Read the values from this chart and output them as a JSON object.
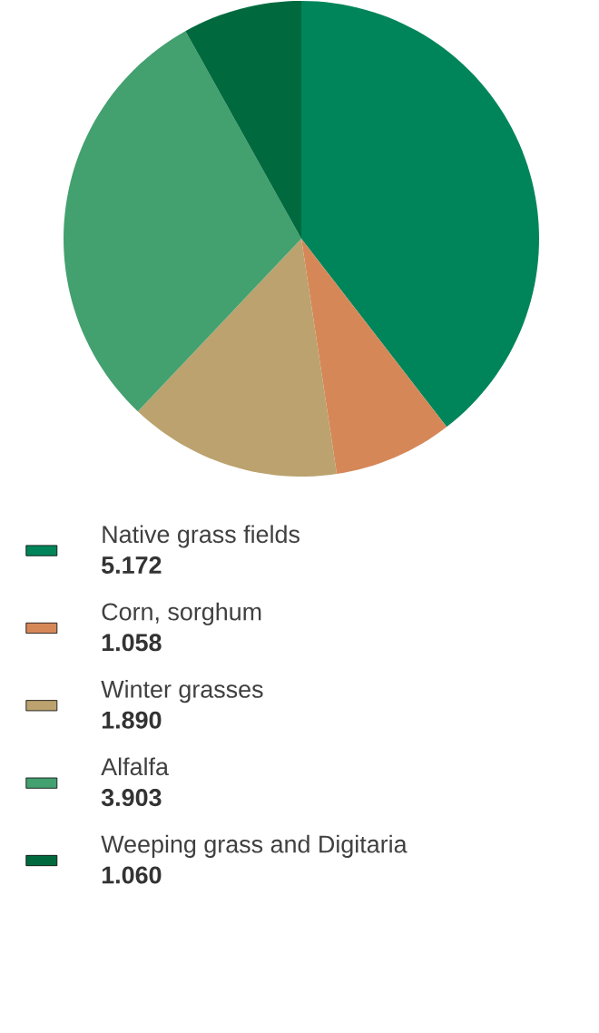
{
  "chart_data": {
    "type": "pie",
    "categories": [
      "Native grass fields",
      "Corn, sorghum",
      "Winter grasses",
      "Alfalfa",
      "Weeping grass and Digitaria"
    ],
    "values": [
      5.172,
      1.058,
      1.89,
      3.903,
      1.06
    ],
    "value_labels": [
      "5.172",
      "1.058",
      "1.890",
      "3.903",
      "1.060"
    ],
    "colors": [
      "#00855a",
      "#d68758",
      "#bba26e",
      "#43a06f",
      "#006a3e"
    ],
    "legend": "bottom"
  }
}
